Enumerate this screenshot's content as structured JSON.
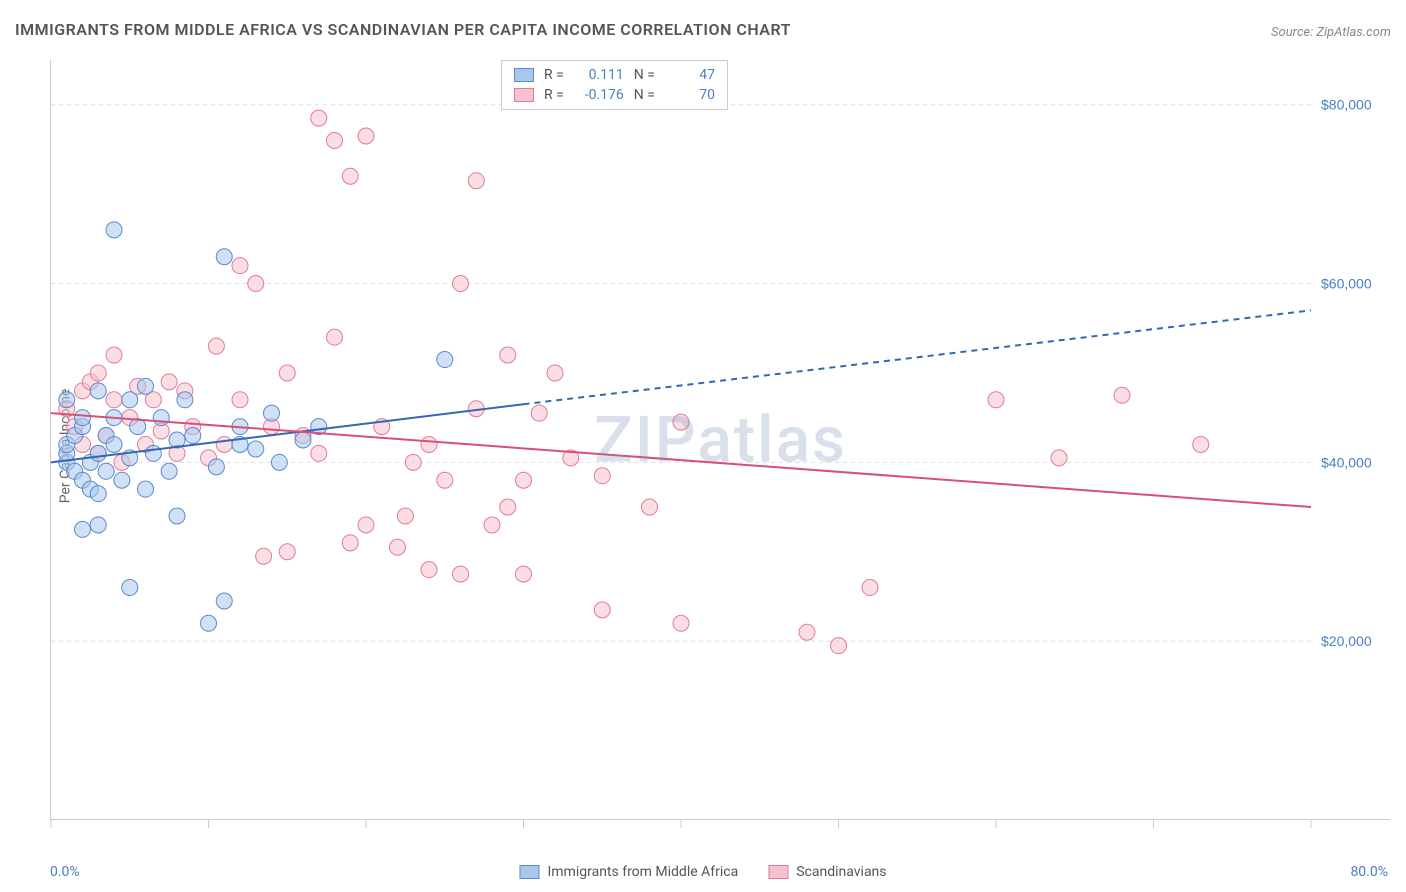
{
  "title": "IMMIGRANTS FROM MIDDLE AFRICA VS SCANDINAVIAN PER CAPITA INCOME CORRELATION CHART",
  "source": "Source: ZipAtlas.com",
  "y_axis_label": "Per Capita Income",
  "watermark": "ZIPatlas",
  "x_axis": {
    "min_label": "0.0%",
    "max_label": "80.0%",
    "min": 0,
    "max": 80,
    "ticks": [
      0,
      10,
      20,
      30,
      40,
      50,
      60,
      70,
      80
    ]
  },
  "y_axis": {
    "min": 0,
    "max": 85000,
    "ticks": [
      20000,
      40000,
      60000,
      80000
    ],
    "tick_labels": [
      "$20,000",
      "$40,000",
      "$60,000",
      "$80,000"
    ]
  },
  "colors": {
    "series1_fill": "#a9c6ec",
    "series1_stroke": "#5a8bcf",
    "series2_fill": "#f5c2ce",
    "series2_stroke": "#e37b96",
    "line1": "#3366b5",
    "line2": "#d94f78",
    "grid": "#dddddd",
    "axis": "#cccccc",
    "tick_label": "#4a7fc5",
    "text": "#555555",
    "background": "#ffffff"
  },
  "marker_radius": 8,
  "line_width": 2,
  "legend_stats": {
    "series1": {
      "R": "0.111",
      "N": "47"
    },
    "series2": {
      "R": "-0.176",
      "N": "70"
    }
  },
  "bottom_legend": {
    "series1": "Immigrants from Middle Africa",
    "series2": "Scandinavians"
  },
  "trend_lines": {
    "series1": {
      "solid_from": [
        0,
        40000
      ],
      "solid_to": [
        30,
        46500
      ],
      "dash_to": [
        80,
        57000
      ]
    },
    "series2": {
      "from": [
        0,
        45500
      ],
      "to": [
        80,
        35000
      ]
    }
  },
  "series1_points": [
    [
      1,
      40000
    ],
    [
      1,
      41000
    ],
    [
      1,
      42000
    ],
    [
      1.5,
      39000
    ],
    [
      1.5,
      43000
    ],
    [
      2,
      38000
    ],
    [
      2,
      44000
    ],
    [
      2,
      45000
    ],
    [
      2.5,
      37000
    ],
    [
      2.5,
      40000
    ],
    [
      3,
      48000
    ],
    [
      3,
      41000
    ],
    [
      3.5,
      43000
    ],
    [
      3,
      36500
    ],
    [
      3.5,
      39000
    ],
    [
      4,
      45000
    ],
    [
      4,
      42000
    ],
    [
      4.5,
      38000
    ],
    [
      5,
      47000
    ],
    [
      5,
      40500
    ],
    [
      5.5,
      44000
    ],
    [
      6,
      37000
    ],
    [
      6,
      48500
    ],
    [
      6.5,
      41000
    ],
    [
      7,
      45000
    ],
    [
      7.5,
      39000
    ],
    [
      8,
      42500
    ],
    [
      8.5,
      47000
    ],
    [
      4,
      66000
    ],
    [
      9,
      43000
    ],
    [
      10,
      22000
    ],
    [
      10.5,
      39500
    ],
    [
      11,
      63000
    ],
    [
      11,
      24500
    ],
    [
      12,
      44000
    ],
    [
      12,
      42000
    ],
    [
      13,
      41500
    ],
    [
      14,
      45500
    ],
    [
      14.5,
      40000
    ],
    [
      16,
      42500
    ],
    [
      17,
      44000
    ],
    [
      25,
      51500
    ],
    [
      2,
      32500
    ],
    [
      5,
      26000
    ],
    [
      8,
      34000
    ],
    [
      1,
      47000
    ],
    [
      3,
      33000
    ]
  ],
  "series2_points": [
    [
      1,
      46000
    ],
    [
      1.5,
      44000
    ],
    [
      2,
      48000
    ],
    [
      2,
      42000
    ],
    [
      2.5,
      49000
    ],
    [
      3,
      41000
    ],
    [
      3,
      50000
    ],
    [
      3.5,
      43000
    ],
    [
      4,
      47000
    ],
    [
      4,
      52000
    ],
    [
      4.5,
      40000
    ],
    [
      5,
      45000
    ],
    [
      5.5,
      48500
    ],
    [
      6,
      42000
    ],
    [
      6.5,
      47000
    ],
    [
      7,
      43500
    ],
    [
      7.5,
      49000
    ],
    [
      8,
      41000
    ],
    [
      8.5,
      48000
    ],
    [
      9,
      44000
    ],
    [
      10,
      40500
    ],
    [
      10.5,
      53000
    ],
    [
      11,
      42000
    ],
    [
      12,
      47000
    ],
    [
      12,
      62000
    ],
    [
      13,
      60000
    ],
    [
      13.5,
      29500
    ],
    [
      14,
      44000
    ],
    [
      15,
      50000
    ],
    [
      15,
      30000
    ],
    [
      16,
      43000
    ],
    [
      17,
      41000
    ],
    [
      17,
      78500
    ],
    [
      18,
      54000
    ],
    [
      18,
      76000
    ],
    [
      19,
      31000
    ],
    [
      19,
      72000
    ],
    [
      20,
      33000
    ],
    [
      20,
      76500
    ],
    [
      21,
      44000
    ],
    [
      22,
      30500
    ],
    [
      22.5,
      34000
    ],
    [
      23,
      40000
    ],
    [
      24,
      42000
    ],
    [
      24,
      28000
    ],
    [
      25,
      38000
    ],
    [
      26,
      27500
    ],
    [
      26,
      60000
    ],
    [
      27,
      46000
    ],
    [
      27,
      71500
    ],
    [
      28,
      33000
    ],
    [
      29,
      52000
    ],
    [
      29,
      35000
    ],
    [
      30,
      38000
    ],
    [
      30,
      27500
    ],
    [
      31,
      45500
    ],
    [
      32,
      50000
    ],
    [
      33,
      40500
    ],
    [
      35,
      38500
    ],
    [
      35,
      23500
    ],
    [
      38,
      35000
    ],
    [
      40,
      44500
    ],
    [
      40,
      22000
    ],
    [
      48,
      21000
    ],
    [
      50,
      19500
    ],
    [
      52,
      26000
    ],
    [
      60,
      47000
    ],
    [
      64,
      40500
    ],
    [
      68,
      47500
    ],
    [
      73,
      42000
    ]
  ]
}
